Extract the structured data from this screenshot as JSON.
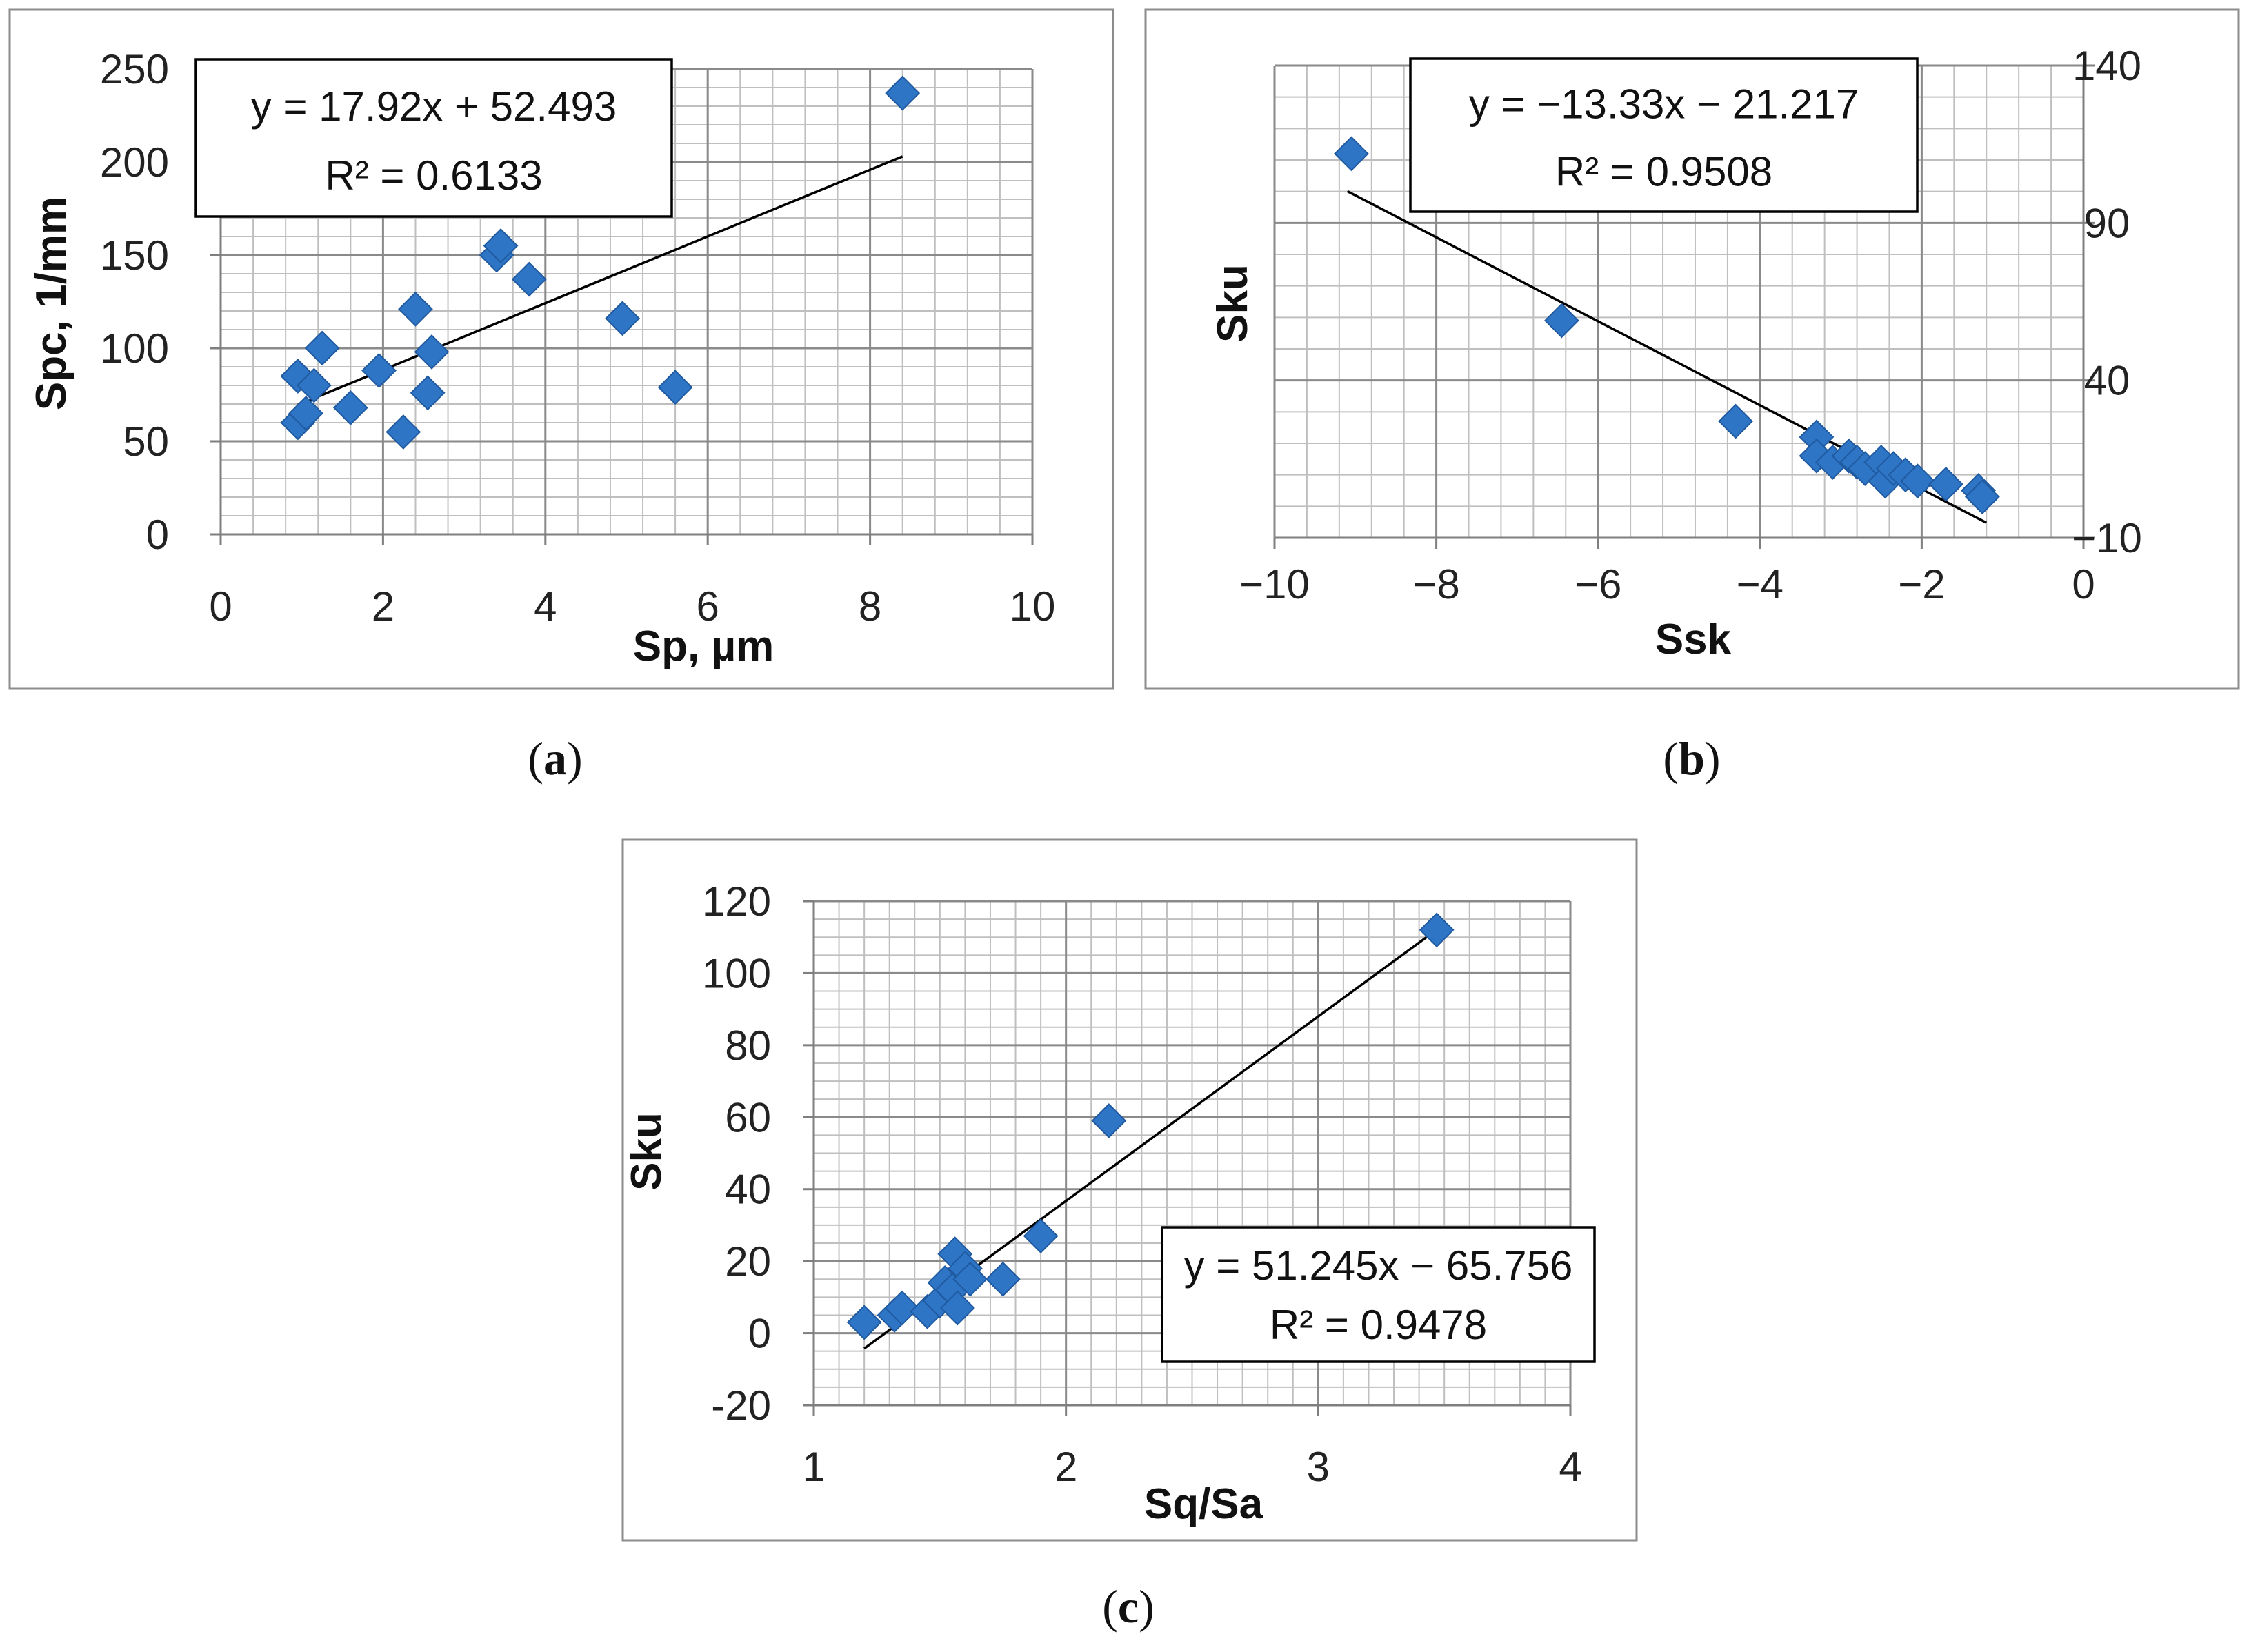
{
  "figure": {
    "colors": {
      "marker": "#2f75c6",
      "marker_edge": "#1f5aa0",
      "grid": "#bfbfbf",
      "frame": "#8c8c8c",
      "trend": "#000000"
    }
  },
  "chart_data": [
    {
      "id": "a",
      "type": "scatter",
      "caption": "a",
      "xlabel": "Sp, µm",
      "ylabel": "Spc, 1/mm",
      "xlim": [
        0,
        10
      ],
      "ylim": [
        0,
        250
      ],
      "x_ticks": [
        0,
        2,
        4,
        6,
        8,
        10
      ],
      "y_ticks": [
        0,
        50,
        100,
        150,
        200,
        250
      ],
      "x_minor_step": 0.4,
      "y_minor_step": 10,
      "y_axis_side": "left",
      "trendline": {
        "equation": "y = 17.92x + 52.493",
        "r2": "R² = 0.6133",
        "x_from": 0.95,
        "x_to": 8.4,
        "slope": 17.92,
        "intercept": 52.493
      },
      "points": [
        {
          "x": 0.95,
          "y": 85
        },
        {
          "x": 0.95,
          "y": 60
        },
        {
          "x": 1.05,
          "y": 65
        },
        {
          "x": 1.15,
          "y": 80
        },
        {
          "x": 1.25,
          "y": 100
        },
        {
          "x": 1.6,
          "y": 68
        },
        {
          "x": 1.95,
          "y": 88
        },
        {
          "x": 2.25,
          "y": 55
        },
        {
          "x": 2.4,
          "y": 121
        },
        {
          "x": 2.55,
          "y": 76
        },
        {
          "x": 2.6,
          "y": 98
        },
        {
          "x": 3.4,
          "y": 150
        },
        {
          "x": 3.45,
          "y": 155
        },
        {
          "x": 3.8,
          "y": 137
        },
        {
          "x": 4.95,
          "y": 116
        },
        {
          "x": 5.6,
          "y": 79
        },
        {
          "x": 8.4,
          "y": 237
        }
      ]
    },
    {
      "id": "b",
      "type": "scatter",
      "caption": "b",
      "xlabel": "Ssk",
      "ylabel": "Sku",
      "xlim": [
        -10,
        0
      ],
      "ylim": [
        -10,
        140
      ],
      "x_ticks": [
        -10,
        -8,
        -6,
        -4,
        -2,
        0
      ],
      "x_tick_labels": [
        "−10",
        "−8",
        "−6",
        "−4",
        "−2",
        "0"
      ],
      "y_ticks": [
        -10,
        40,
        90,
        140
      ],
      "y_tick_labels": [
        "−10",
        "40",
        "90",
        "140"
      ],
      "x_minor_step": 0.4,
      "y_minor_step": 10,
      "y_axis_side": "right",
      "trendline": {
        "equation": "y = −13.33x − 21.217",
        "r2": "R² = 0.9508",
        "x_from": -9.1,
        "x_to": -1.2,
        "slope": -13.33,
        "intercept": -21.217
      },
      "points": [
        {
          "x": -9.05,
          "y": 112
        },
        {
          "x": -6.45,
          "y": 59
        },
        {
          "x": -4.3,
          "y": 27
        },
        {
          "x": -3.3,
          "y": 22
        },
        {
          "x": -3.3,
          "y": 16
        },
        {
          "x": -3.1,
          "y": 14
        },
        {
          "x": -2.9,
          "y": 16
        },
        {
          "x": -2.8,
          "y": 14
        },
        {
          "x": -2.7,
          "y": 12
        },
        {
          "x": -2.5,
          "y": 14
        },
        {
          "x": -2.45,
          "y": 8
        },
        {
          "x": -2.35,
          "y": 12
        },
        {
          "x": -2.2,
          "y": 10
        },
        {
          "x": -2.05,
          "y": 8
        },
        {
          "x": -1.7,
          "y": 7
        },
        {
          "x": -1.3,
          "y": 5
        },
        {
          "x": -1.25,
          "y": 3
        }
      ]
    },
    {
      "id": "c",
      "type": "scatter",
      "caption": "c",
      "xlabel": "Sq/Sa",
      "ylabel": "Sku",
      "xlim": [
        1,
        4
      ],
      "ylim": [
        -20,
        120
      ],
      "x_ticks": [
        1,
        2,
        3,
        4
      ],
      "y_ticks": [
        -20,
        0,
        20,
        40,
        60,
        80,
        100,
        120
      ],
      "x_minor_step": 0.1,
      "y_minor_step": 5,
      "y_axis_side": "left",
      "trendline": {
        "equation": "y = 51.245x − 65.756",
        "r2": "R² = 0.9478",
        "x_from": 1.2,
        "x_to": 3.45,
        "slope": 51.245,
        "intercept": -65.756
      },
      "points": [
        {
          "x": 1.2,
          "y": 3
        },
        {
          "x": 1.32,
          "y": 5
        },
        {
          "x": 1.35,
          "y": 7
        },
        {
          "x": 1.45,
          "y": 6
        },
        {
          "x": 1.5,
          "y": 9
        },
        {
          "x": 1.52,
          "y": 14
        },
        {
          "x": 1.55,
          "y": 12
        },
        {
          "x": 1.56,
          "y": 22
        },
        {
          "x": 1.57,
          "y": 7
        },
        {
          "x": 1.6,
          "y": 18
        },
        {
          "x": 1.62,
          "y": 15
        },
        {
          "x": 1.75,
          "y": 15
        },
        {
          "x": 1.9,
          "y": 27
        },
        {
          "x": 2.17,
          "y": 59
        },
        {
          "x": 3.47,
          "y": 112
        }
      ]
    }
  ]
}
